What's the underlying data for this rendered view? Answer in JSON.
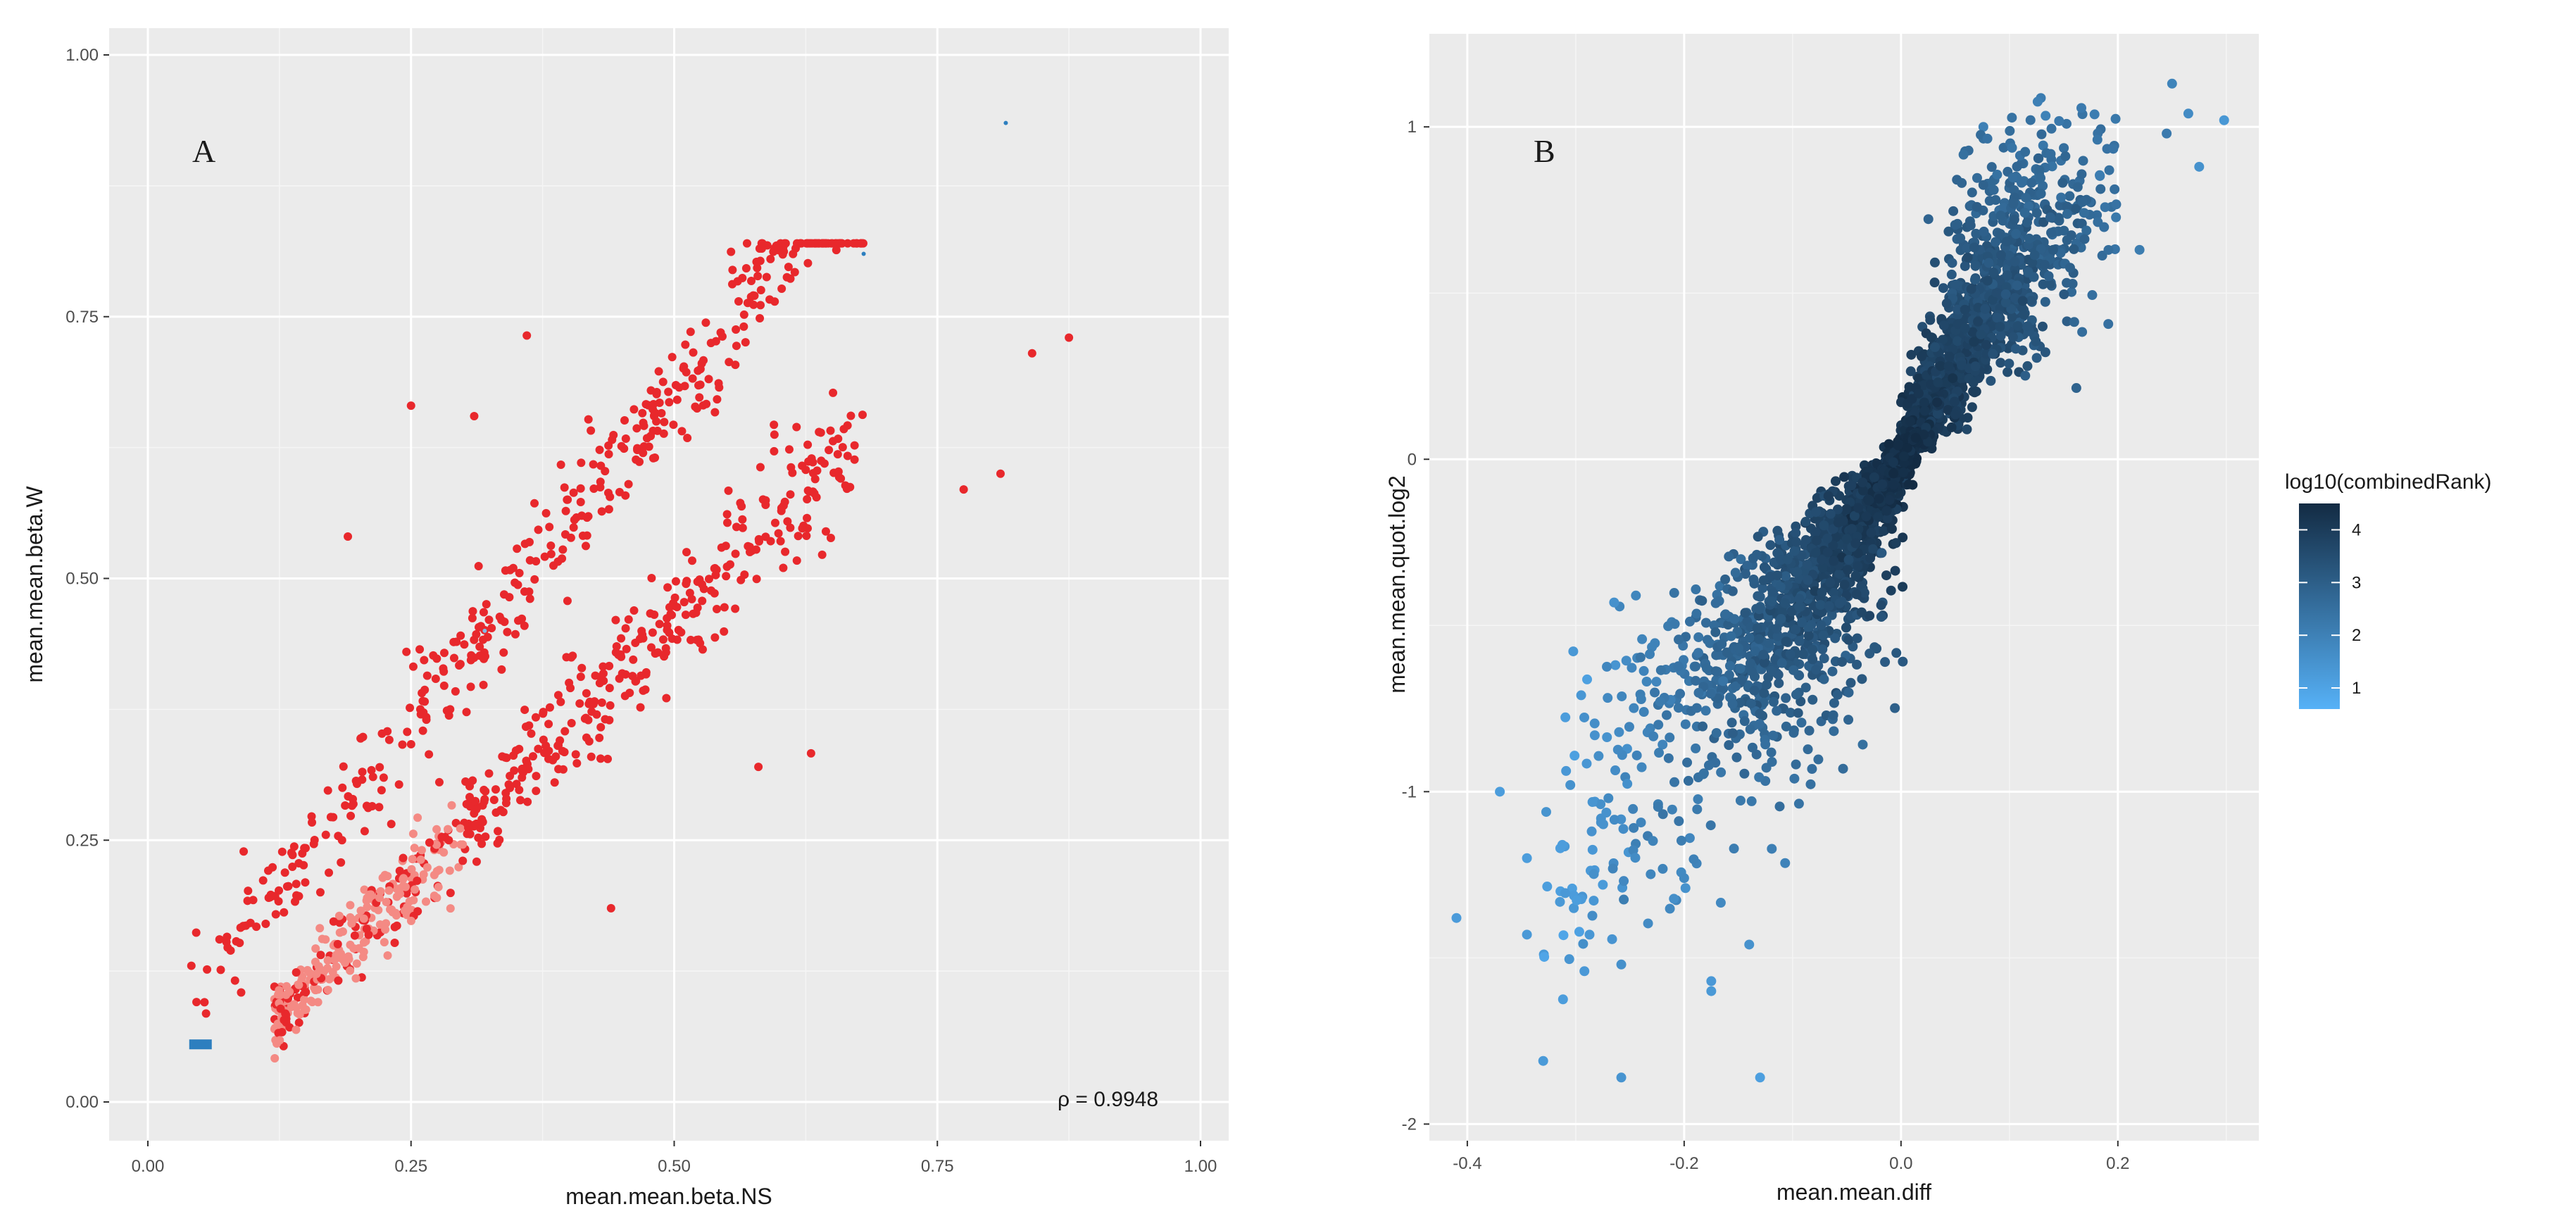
{
  "chart_data": [
    {
      "panel": "A",
      "type": "scatter",
      "panel_label": "A",
      "xlabel": "mean.mean.beta.NS",
      "ylabel": "mean.mean.beta.W",
      "xlim": [
        0,
        1
      ],
      "ylim": [
        0,
        1
      ],
      "x_ticks": [
        0,
        0.25,
        0.5,
        0.75,
        1
      ],
      "x_tick_labels": [
        "0.00",
        "0.25",
        "0.50",
        "0.75",
        "1.00"
      ],
      "y_ticks": [
        0,
        0.25,
        0.5,
        0.75,
        1
      ],
      "y_tick_labels": [
        "0.00",
        "0.25",
        "0.50",
        "0.75",
        "1.00"
      ],
      "annotation": "ρ = 0.9948",
      "colors": {
        "point": "#e8282c",
        "point_light": "#f48a84",
        "accent": "#2d7fbf"
      },
      "series": [
        {
          "name": "upper band",
          "description": "points lying above the identity diagonal, roughly y ≈ 1.25x + 0.05",
          "x_range": [
            0.04,
            0.68
          ],
          "trend": "y ≈ 1.25x + 0.05"
        },
        {
          "name": "lower band",
          "description": "points close to the identity line, roughly y ≈ x",
          "x_range": [
            0.12,
            0.8
          ],
          "trend": "y ≈ x"
        },
        {
          "name": "outliers",
          "points": [
            [
              0.25,
              0.665
            ],
            [
              0.31,
              0.655
            ],
            [
              0.36,
              0.732
            ],
            [
              0.19,
              0.54
            ],
            [
              0.84,
              0.715
            ],
            [
              0.875,
              0.73
            ],
            [
              0.58,
              0.32
            ],
            [
              0.63,
              0.333
            ],
            [
              0.44,
              0.185
            ],
            [
              0.81,
              0.6
            ],
            [
              0.775,
              0.585
            ]
          ]
        },
        {
          "name": "blue marks",
          "points": [
            [
              0.815,
              0.935
            ],
            [
              0.68,
              0.81
            ],
            [
              0.05,
              0.055
            ],
            [
              0.32,
              0.45
            ]
          ]
        }
      ]
    },
    {
      "panel": "B",
      "type": "scatter",
      "panel_label": "B",
      "xlabel": "mean.mean.diff",
      "ylabel": "mean.mean.quot.log2",
      "xlim": [
        -0.435,
        0.33
      ],
      "ylim": [
        -2.05,
        1.28
      ],
      "x_ticks": [
        -0.4,
        -0.2,
        0.0,
        0.2
      ],
      "x_tick_labels": [
        "-0.4",
        "-0.2",
        "0.0",
        "0.2"
      ],
      "y_ticks": [
        -2,
        -1,
        0,
        1
      ],
      "y_tick_labels": [
        "-2",
        "-1",
        "0",
        "1"
      ],
      "color_encoding": "log10(combinedRank)",
      "description": "bow-tie shaped cloud through the origin: dense dark core along y ≈ 7x, sparser lighter points at the extremes",
      "outliers": [
        [
          -0.41,
          -1.38
        ],
        [
          -0.37,
          -1.0
        ],
        [
          -0.345,
          -1.2
        ],
        [
          -0.345,
          -1.43
        ],
        [
          -0.33,
          -1.81
        ],
        [
          -0.305,
          -0.98
        ],
        [
          -0.295,
          -0.71
        ],
        [
          -0.275,
          -1.28
        ],
        [
          -0.258,
          -1.52
        ],
        [
          -0.258,
          -1.86
        ],
        [
          -0.292,
          -1.54
        ],
        [
          -0.2,
          -1.26
        ],
        [
          -0.175,
          -1.57
        ],
        [
          -0.175,
          -1.6
        ],
        [
          -0.13,
          -1.86
        ],
        [
          -0.14,
          -1.46
        ],
        [
          0.25,
          1.13
        ],
        [
          0.265,
          1.04
        ],
        [
          0.275,
          0.88
        ],
        [
          0.298,
          1.02
        ],
        [
          0.245,
          0.98
        ],
        [
          0.22,
          0.63
        ]
      ]
    }
  ],
  "legend": {
    "title": "log10(combinedRank)",
    "ticks": [
      "4",
      "3",
      "2",
      "1"
    ],
    "tick_values": [
      4,
      3,
      2,
      1
    ],
    "range": [
      0.6,
      4.5
    ],
    "color_low": "#56b1f7",
    "color_high": "#132b43"
  }
}
